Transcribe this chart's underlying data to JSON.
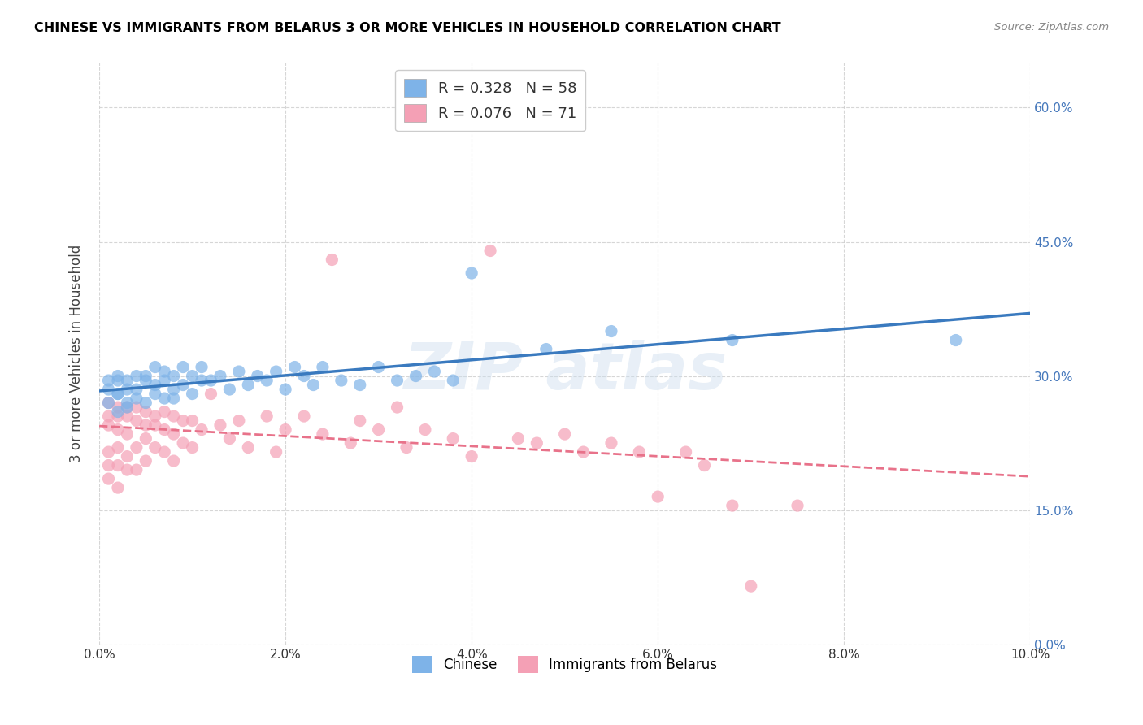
{
  "title": "CHINESE VS IMMIGRANTS FROM BELARUS 3 OR MORE VEHICLES IN HOUSEHOLD CORRELATION CHART",
  "source": "Source: ZipAtlas.com",
  "ylabel": "3 or more Vehicles in Household",
  "xlim": [
    0.0,
    0.1
  ],
  "ylim": [
    0.0,
    0.65
  ],
  "legend_label_chinese": "Chinese",
  "legend_label_belarus": "Immigrants from Belarus",
  "chinese_R": "0.328",
  "chinese_N": "58",
  "belarus_R": "0.076",
  "belarus_N": "71",
  "chinese_color": "#7EB3E8",
  "belarus_color": "#F4A0B5",
  "chinese_line_color": "#3A7ABF",
  "belarus_line_color": "#E8728A",
  "background_color": "#ffffff",
  "grid_color": "#cccccc",
  "chinese_x": [
    0.001,
    0.001,
    0.001,
    0.002,
    0.002,
    0.002,
    0.002,
    0.002,
    0.003,
    0.003,
    0.003,
    0.003,
    0.004,
    0.004,
    0.004,
    0.005,
    0.005,
    0.005,
    0.006,
    0.006,
    0.006,
    0.007,
    0.007,
    0.007,
    0.008,
    0.008,
    0.008,
    0.009,
    0.009,
    0.01,
    0.01,
    0.011,
    0.011,
    0.012,
    0.013,
    0.014,
    0.015,
    0.016,
    0.017,
    0.018,
    0.019,
    0.02,
    0.021,
    0.022,
    0.023,
    0.024,
    0.026,
    0.028,
    0.03,
    0.032,
    0.034,
    0.036,
    0.038,
    0.04,
    0.048,
    0.055,
    0.068,
    0.092
  ],
  "chinese_y": [
    0.285,
    0.295,
    0.27,
    0.28,
    0.26,
    0.295,
    0.3,
    0.28,
    0.285,
    0.27,
    0.295,
    0.265,
    0.3,
    0.285,
    0.275,
    0.295,
    0.27,
    0.3,
    0.28,
    0.31,
    0.29,
    0.295,
    0.275,
    0.305,
    0.285,
    0.3,
    0.275,
    0.31,
    0.29,
    0.3,
    0.28,
    0.295,
    0.31,
    0.295,
    0.3,
    0.285,
    0.305,
    0.29,
    0.3,
    0.295,
    0.305,
    0.285,
    0.31,
    0.3,
    0.29,
    0.31,
    0.295,
    0.29,
    0.31,
    0.295,
    0.3,
    0.305,
    0.295,
    0.415,
    0.33,
    0.35,
    0.34,
    0.34
  ],
  "belarus_x": [
    0.001,
    0.001,
    0.001,
    0.001,
    0.001,
    0.001,
    0.002,
    0.002,
    0.002,
    0.002,
    0.002,
    0.002,
    0.003,
    0.003,
    0.003,
    0.003,
    0.003,
    0.004,
    0.004,
    0.004,
    0.004,
    0.005,
    0.005,
    0.005,
    0.005,
    0.006,
    0.006,
    0.006,
    0.007,
    0.007,
    0.007,
    0.008,
    0.008,
    0.008,
    0.009,
    0.009,
    0.01,
    0.01,
    0.011,
    0.012,
    0.013,
    0.014,
    0.015,
    0.016,
    0.018,
    0.019,
    0.02,
    0.022,
    0.024,
    0.025,
    0.027,
    0.028,
    0.03,
    0.032,
    0.033,
    0.035,
    0.038,
    0.04,
    0.042,
    0.045,
    0.047,
    0.05,
    0.052,
    0.055,
    0.058,
    0.06,
    0.063,
    0.065,
    0.068,
    0.07,
    0.075
  ],
  "belarus_y": [
    0.27,
    0.255,
    0.245,
    0.215,
    0.2,
    0.185,
    0.265,
    0.255,
    0.24,
    0.22,
    0.2,
    0.175,
    0.265,
    0.255,
    0.235,
    0.21,
    0.195,
    0.265,
    0.25,
    0.22,
    0.195,
    0.26,
    0.245,
    0.23,
    0.205,
    0.255,
    0.245,
    0.22,
    0.26,
    0.24,
    0.215,
    0.255,
    0.235,
    0.205,
    0.25,
    0.225,
    0.25,
    0.22,
    0.24,
    0.28,
    0.245,
    0.23,
    0.25,
    0.22,
    0.255,
    0.215,
    0.24,
    0.255,
    0.235,
    0.43,
    0.225,
    0.25,
    0.24,
    0.265,
    0.22,
    0.24,
    0.23,
    0.21,
    0.44,
    0.23,
    0.225,
    0.235,
    0.215,
    0.225,
    0.215,
    0.165,
    0.215,
    0.2,
    0.155,
    0.065,
    0.155
  ]
}
